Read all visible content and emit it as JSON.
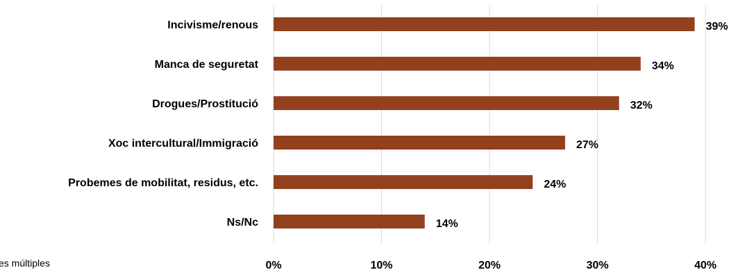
{
  "chart_data": {
    "type": "bar",
    "orientation": "horizontal",
    "categories": [
      "Incivisme/renous",
      "Manca de seguretat",
      "Drogues/Prostitució",
      "Xoc intercultural/Immigració",
      "Probemes de mobilitat, residus, etc.",
      "Ns/Nc"
    ],
    "values": [
      39,
      34,
      32,
      27,
      24,
      14
    ],
    "value_labels": [
      "39%",
      "34%",
      "32%",
      "27%",
      "24%",
      "14%"
    ],
    "xlim": [
      0,
      40
    ],
    "xticks": [
      0,
      10,
      20,
      30,
      40
    ],
    "xtick_labels": [
      "0%",
      "10%",
      "20%",
      "30%",
      "40%"
    ],
    "grid": "vertical",
    "bar_color": "#93401E",
    "grid_color": "#D9D9D9"
  },
  "footnote": "es múltiples"
}
